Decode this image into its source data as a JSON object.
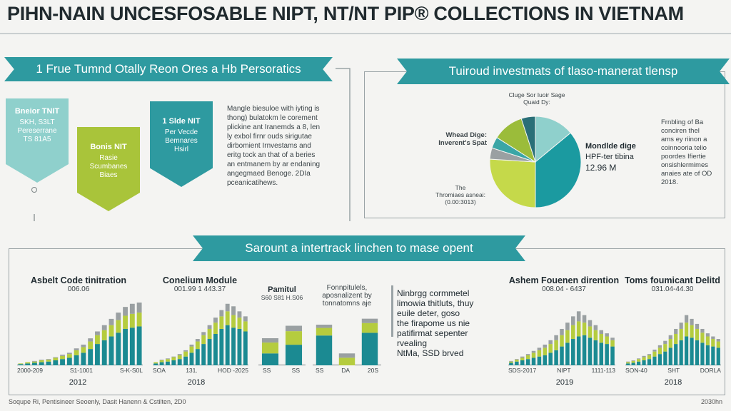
{
  "title": "PIHN-NAIN UNCESFOSABLE NIPT, NT/NT PIP® COLLECTIONS IN VIETNAM",
  "colors": {
    "teal": "#2e9aa0",
    "deep_teal": "#1b7f86",
    "lime": "#a9c43a",
    "light_teal": "#8fd0cc",
    "grey": "#9aa0a2",
    "dark": "#2a4a56"
  },
  "left_panel": {
    "ribbon": "1 Frue Tumnd Otally Reon Ores a Hb Persoratics",
    "callouts": [
      {
        "title": "Bneior TNIT",
        "lines": [
          "SKH, S3LT",
          "Pereserrane",
          "TS 81A5"
        ]
      },
      {
        "title": "Bonis NIT",
        "lines": [
          "Rasie",
          "Scumbanes",
          "Biaes"
        ]
      },
      {
        "title": "1 Slde NIT",
        "lines": [
          "Per Vecde",
          "Bemnares",
          "Hsirl"
        ]
      }
    ],
    "paragraph": [
      "Mangle biesuloe with iyting is",
      "thong) bulatokm le corement",
      "plickine ant Iranemds a 8, len",
      "ly exbol firnr ouds sirigutae",
      "dirbomient Irnvestams and",
      "eritg tock an that of a beries",
      "an entmanem by ar endaning",
      "angegmaed Benoge. 2DIa",
      "pceanicatihews."
    ]
  },
  "right_panel": {
    "ribbon": "Tuiroud investmats of tlaso-manerat tlensp",
    "callout_top": [
      "Cluge Sor Iuoir Sage",
      "Quaid Dy:"
    ],
    "callout_left": [
      "Whead Dige:",
      "Inverent's Spat"
    ],
    "callout_bottom": [
      "The",
      "Thromiaes asneai:",
      "(0.00:3013)"
    ],
    "callout_right": [
      "Mondlde dige",
      "HPF-ter tibina",
      "12.96 M"
    ],
    "side_text": [
      "Frnbling of Ba",
      "conciren thel",
      "ams ey riinon a",
      "coinnooria telio",
      "poordes Ifiertie",
      "onsishlermimes",
      "anaies ate of OD",
      "2018."
    ]
  },
  "lower_section": {
    "ribbon": "Sarount a intertrack linchen to mase opent",
    "note_text": [
      "Ninbrgg cormmetel",
      "limowia thitluts, thuy",
      "euile deter, goso",
      "the firapome us nie",
      "patifirmat sepenter",
      "rvealing",
      "NtMa, SSD brved"
    ]
  },
  "chart_data": [
    {
      "type": "pie",
      "title": "",
      "slices": [
        {
          "label": "Cluge Sor Iuoir Sage",
          "value": 14,
          "color": "#8fd0cc"
        },
        {
          "label": "Mondlde dige",
          "value": 36,
          "color": "#1b9aa0"
        },
        {
          "label": "Thromiaes asneai",
          "value": 26,
          "color": "#c5d94a"
        },
        {
          "label": "",
          "value": 4,
          "color": "#9aa0a2"
        },
        {
          "label": "Whead Dige",
          "value": 4,
          "color": "#3aa6a6"
        },
        {
          "label": "",
          "value": 11,
          "color": "#9bbc3a"
        },
        {
          "label": "",
          "value": 5,
          "color": "#2a6f77"
        }
      ]
    },
    {
      "type": "bar",
      "title": "Asbelt Code tinitration",
      "subtitle": "006.06",
      "xlabels": [
        "2000-209",
        "S1-1001",
        "S-K-S0L"
      ],
      "year": "2012",
      "ylim": [
        0,
        100
      ],
      "series": [
        {
          "name": "",
          "values": [
            2,
            3,
            4,
            5,
            6,
            8,
            10,
            12,
            16,
            20,
            26,
            34,
            40,
            46,
            52,
            58,
            60,
            62
          ]
        },
        {
          "name": "",
          "values": [
            1,
            2,
            2,
            3,
            3,
            4,
            5,
            6,
            8,
            9,
            12,
            14,
            16,
            18,
            20,
            21,
            22,
            22
          ]
        },
        {
          "name": "",
          "values": [
            0,
            0,
            1,
            1,
            1,
            1,
            2,
            2,
            3,
            4,
            5,
            6,
            8,
            10,
            12,
            14,
            16,
            16
          ]
        }
      ]
    },
    {
      "type": "bar",
      "title": "Conelium Module",
      "subtitle": "001.99 1 443.37",
      "xlabels": [
        "SOA",
        "131.",
        "HOD -2025"
      ],
      "year": "2018",
      "ylim": [
        0,
        100
      ],
      "series": [
        {
          "name": "",
          "values": [
            3,
            5,
            6,
            8,
            10,
            14,
            20,
            26,
            34,
            42,
            50,
            58,
            64,
            60,
            58,
            54
          ]
        },
        {
          "name": "",
          "values": [
            2,
            3,
            4,
            5,
            6,
            8,
            10,
            12,
            14,
            16,
            18,
            20,
            22,
            20,
            18,
            16
          ]
        },
        {
          "name": "",
          "values": [
            0,
            1,
            1,
            1,
            2,
            2,
            3,
            4,
            5,
            6,
            8,
            10,
            12,
            14,
            10,
            8
          ]
        }
      ]
    },
    {
      "type": "bar",
      "title": "Pamitul",
      "subtitle": "S60 S81 H.S06",
      "xlabels": [
        "SS",
        "SS"
      ],
      "ylim": [
        0,
        100
      ],
      "series": [
        {
          "name": "",
          "values": [
            22,
            38
          ]
        },
        {
          "name": "",
          "values": [
            20,
            25
          ]
        },
        {
          "name": "",
          "values": [
            8,
            10
          ]
        }
      ]
    },
    {
      "type": "bar",
      "title": "Fonnpitulels, aposnalizent by tonnatomns aje",
      "xlabels": [
        "SS",
        "DA",
        "20S"
      ],
      "ylim": [
        0,
        100
      ],
      "series": [
        {
          "name": "",
          "values": [
            55,
            0,
            60
          ]
        },
        {
          "name": "",
          "values": [
            14,
            14,
            18
          ]
        },
        {
          "name": "",
          "values": [
            6,
            8,
            8
          ]
        }
      ]
    },
    {
      "type": "bar",
      "title": "Ashem Fouenen dirention",
      "subtitle": "008.04 - 6437",
      "xlabels": [
        "SDS-2017",
        "NIPT",
        "1111-113"
      ],
      "year": "2019",
      "ylim": [
        0,
        100
      ],
      "series": [
        {
          "name": "",
          "values": [
            4,
            6,
            8,
            10,
            12,
            14,
            16,
            20,
            24,
            30,
            36,
            42,
            46,
            48,
            44,
            40,
            36,
            34,
            30
          ]
        },
        {
          "name": "",
          "values": [
            2,
            3,
            4,
            6,
            8,
            10,
            12,
            14,
            16,
            18,
            20,
            22,
            24,
            20,
            18,
            16,
            14,
            12,
            10
          ]
        },
        {
          "name": "",
          "values": [
            1,
            1,
            2,
            2,
            3,
            4,
            5,
            6,
            8,
            10,
            12,
            14,
            16,
            12,
            10,
            8,
            6,
            5,
            4
          ]
        }
      ]
    },
    {
      "type": "bar",
      "title": "Toms foumicant Delitd",
      "subtitle": "031.04-44.30",
      "xlabels": [
        "SON-40",
        "SHT",
        "DORLA"
      ],
      "year": "2018",
      "ylim": [
        0,
        100
      ],
      "series": [
        {
          "name": "",
          "values": [
            3,
            4,
            6,
            8,
            10,
            14,
            18,
            22,
            28,
            34,
            40,
            46,
            44,
            40,
            36,
            32,
            30,
            28
          ]
        },
        {
          "name": "",
          "values": [
            2,
            3,
            4,
            5,
            6,
            8,
            10,
            12,
            14,
            16,
            18,
            22,
            20,
            18,
            16,
            14,
            12,
            10
          ]
        },
        {
          "name": "",
          "values": [
            1,
            1,
            1,
            2,
            2,
            3,
            4,
            5,
            6,
            8,
            10,
            12,
            10,
            8,
            6,
            5,
            4,
            4
          ]
        }
      ]
    }
  ],
  "footer": {
    "left": "Soqupe Ri, Pentisineer Seoenly, Dasit Hanenn & Cstilten, 2D0",
    "right": "2030hn"
  }
}
